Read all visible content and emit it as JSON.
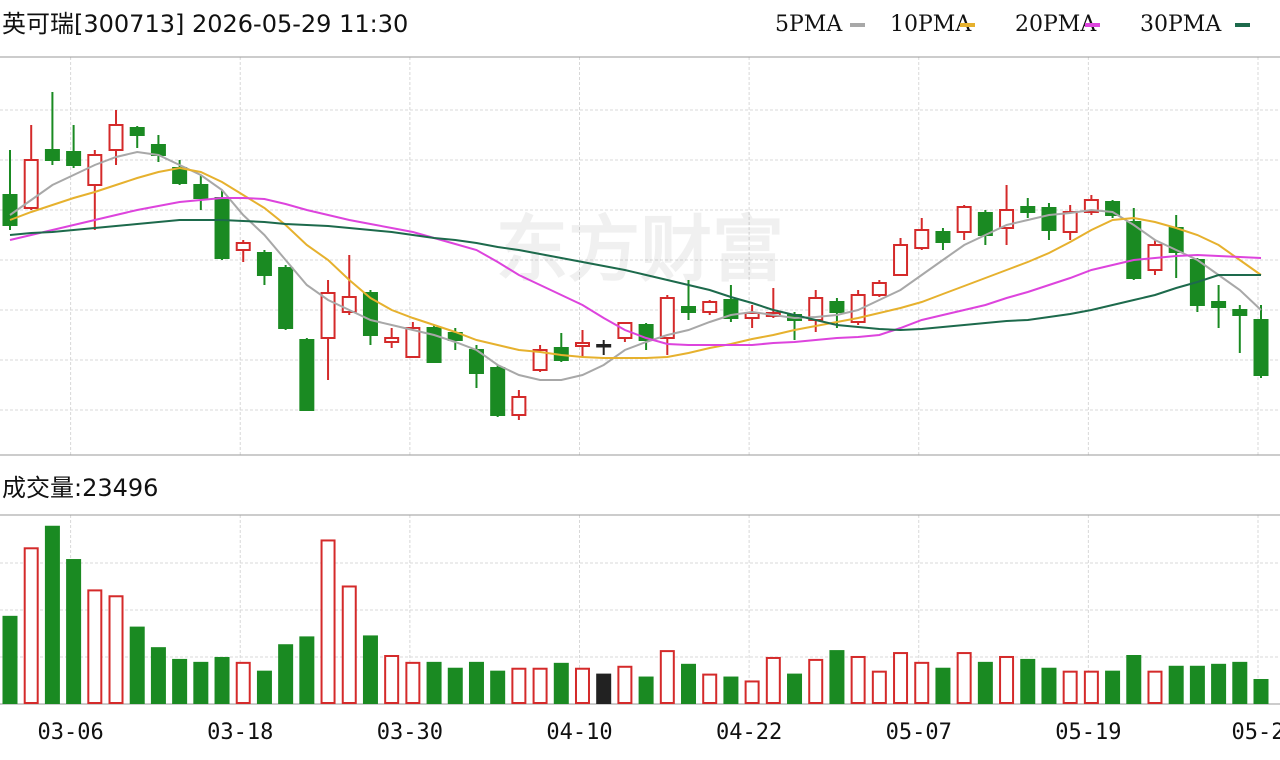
{
  "chart_data": {
    "type": "candlestick",
    "title": "英可瑞[300713] 2026-05-29 11:30",
    "watermark": "东方财富",
    "grid": true,
    "up_color": "#d42a2a",
    "down_color": "#1a8a22",
    "flat_color": "#222222",
    "categories": [
      null,
      null,
      null,
      "03-06",
      null,
      null,
      null,
      null,
      null,
      null,
      null,
      "03-18",
      null,
      null,
      null,
      null,
      null,
      null,
      null,
      "03-30",
      null,
      null,
      null,
      null,
      null,
      null,
      null,
      "04-10",
      null,
      null,
      null,
      null,
      null,
      null,
      null,
      "04-22",
      null,
      null,
      null,
      null,
      null,
      null,
      null,
      "05-07",
      null,
      null,
      null,
      null,
      null,
      null,
      null,
      "05-19",
      null,
      null,
      null,
      null,
      null,
      null,
      null,
      "05-2"
    ],
    "open": [
      27.5,
      26.2,
      32.0,
      31.8,
      28.5,
      32.0,
      34.2,
      32.5,
      30.2,
      28.5,
      27.2,
      22.0,
      21.7,
      20.2,
      13.0,
      13.2,
      15.8,
      17.7,
      12.8,
      11.3,
      14.2,
      13.7,
      12.0,
      10.2,
      5.5,
      10.0,
      12.2,
      12.4,
      12.5,
      13.2,
      14.5,
      13.2,
      16.3,
      15.8,
      17.0,
      15.2,
      15.4,
      15.5,
      15.0,
      16.8,
      14.8,
      17.5,
      19.5,
      22.2,
      23.8,
      23.8,
      25.7,
      24.2,
      26.3,
      26.2,
      23.8,
      25.8,
      26.8,
      24.8,
      20.0,
      24.2,
      21.0,
      16.8,
      16.0,
      15.0
    ],
    "high": [
      32.0,
      34.5,
      37.8,
      34.5,
      32.0,
      36.0,
      34.4,
      33.5,
      31.0,
      29.5,
      28.0,
      23.0,
      22.0,
      20.5,
      13.2,
      19.0,
      21.5,
      18.0,
      14.2,
      14.8,
      14.5,
      14.2,
      12.5,
      10.5,
      8.0,
      12.5,
      13.7,
      14.0,
      13.0,
      14.8,
      14.7,
      17.5,
      19.0,
      17.0,
      18.5,
      16.5,
      18.2,
      15.8,
      18.0,
      17.2,
      18.0,
      19.0,
      23.2,
      25.2,
      24.2,
      26.5,
      26.0,
      28.5,
      27.2,
      26.7,
      26.5,
      27.5,
      27.0,
      26.2,
      23.0,
      25.5,
      21.2,
      18.5,
      16.5,
      16.5
    ],
    "low": [
      24.0,
      26.0,
      30.5,
      30.2,
      24.0,
      30.5,
      32.2,
      30.8,
      28.5,
      26.0,
      21.0,
      20.8,
      18.5,
      14.0,
      6.0,
      9.0,
      15.5,
      12.5,
      12.2,
      11.2,
      10.8,
      12.0,
      8.2,
      5.3,
      5.0,
      9.8,
      10.8,
      11.3,
      11.5,
      12.8,
      12.0,
      11.5,
      15.0,
      15.5,
      14.8,
      14.2,
      15.2,
      13.0,
      13.8,
      14.2,
      14.5,
      17.3,
      19.4,
      22.0,
      22.0,
      23.0,
      22.5,
      22.5,
      25.2,
      23.0,
      23.0,
      25.5,
      25.2,
      19.0,
      19.5,
      19.2,
      15.8,
      14.2,
      11.7,
      9.2
    ],
    "close": [
      24.5,
      31.0,
      31.0,
      30.5,
      31.5,
      34.5,
      33.5,
      31.5,
      28.7,
      27.2,
      21.2,
      22.7,
      19.5,
      14.2,
      6.0,
      17.7,
      17.3,
      13.5,
      13.2,
      14.2,
      10.8,
      13.0,
      9.7,
      5.5,
      7.3,
      12.0,
      11.0,
      12.7,
      12.5,
      14.7,
      13.0,
      17.2,
      15.8,
      16.8,
      15.2,
      15.7,
      15.7,
      15.0,
      17.2,
      15.8,
      17.5,
      18.7,
      22.5,
      24.0,
      22.8,
      26.3,
      23.5,
      26.0,
      25.8,
      24.0,
      25.8,
      27.0,
      25.5,
      19.2,
      22.5,
      21.8,
      16.5,
      16.3,
      15.5,
      9.5
    ],
    "ylim": [
      1.5,
      41
    ],
    "series": [
      {
        "name": "5PMA",
        "color": "#a8a8a8",
        "values": [
          25.5,
          27.0,
          28.5,
          29.5,
          30.5,
          31.3,
          31.8,
          31.5,
          30.5,
          29.5,
          28.0,
          25.5,
          23.5,
          21.0,
          18.5,
          17.0,
          16.0,
          15.0,
          14.5,
          14.0,
          13.5,
          12.8,
          12.0,
          10.5,
          9.5,
          9.0,
          9.0,
          9.5,
          10.5,
          12.0,
          12.8,
          13.5,
          14.0,
          14.8,
          15.5,
          15.8,
          15.5,
          15.2,
          15.3,
          15.5,
          16.0,
          17.0,
          18.0,
          19.5,
          21.0,
          22.5,
          23.5,
          24.5,
          25.0,
          25.5,
          25.7,
          26.0,
          25.8,
          24.5,
          23.0,
          22.0,
          21.0,
          19.5,
          18.0,
          16.0
        ]
      },
      {
        "name": "10PMA",
        "color": "#e6b12e",
        "values": [
          25.0,
          25.8,
          26.5,
          27.2,
          27.8,
          28.5,
          29.2,
          29.8,
          30.2,
          29.8,
          28.8,
          27.5,
          26.2,
          24.5,
          22.5,
          21.0,
          19.0,
          17.2,
          16.0,
          15.2,
          14.5,
          13.8,
          13.0,
          12.5,
          12.0,
          11.8,
          11.5,
          11.3,
          11.2,
          11.2,
          11.2,
          11.3,
          11.7,
          12.2,
          12.6,
          13.1,
          13.5,
          14.0,
          14.4,
          14.8,
          15.2,
          15.7,
          16.2,
          16.8,
          17.6,
          18.4,
          19.2,
          20.0,
          20.8,
          21.7,
          22.8,
          24.0,
          25.0,
          25.2,
          24.8,
          24.2,
          23.5,
          22.5,
          21.0,
          19.5
        ]
      },
      {
        "name": "20PMA",
        "color": "#dd44dd",
        "values": [
          23.0,
          23.5,
          24.0,
          24.5,
          25.0,
          25.5,
          26.0,
          26.4,
          26.8,
          27.0,
          27.2,
          27.2,
          27.1,
          26.6,
          26.0,
          25.5,
          25.0,
          24.6,
          24.2,
          23.8,
          23.2,
          22.6,
          22.0,
          20.8,
          19.5,
          18.5,
          17.5,
          16.5,
          15.2,
          14.0,
          13.2,
          12.6,
          12.5,
          12.5,
          12.5,
          12.5,
          12.7,
          12.8,
          13.0,
          13.2,
          13.3,
          13.5,
          14.2,
          15.0,
          15.5,
          16.0,
          16.5,
          17.2,
          17.8,
          18.5,
          19.2,
          20.0,
          20.5,
          21.0,
          21.2,
          21.4,
          21.5,
          21.4,
          21.3,
          21.2
        ]
      },
      {
        "name": "30PMA",
        "color": "#1d6a4c",
        "values": [
          23.5,
          23.7,
          23.8,
          24.0,
          24.2,
          24.4,
          24.6,
          24.8,
          25.0,
          25.0,
          25.0,
          24.9,
          24.8,
          24.6,
          24.5,
          24.4,
          24.2,
          24.0,
          23.8,
          23.5,
          23.2,
          23.0,
          22.7,
          22.3,
          22.0,
          21.6,
          21.2,
          20.8,
          20.4,
          20.0,
          19.5,
          19.0,
          18.5,
          18.0,
          17.3,
          16.7,
          16.0,
          15.5,
          15.0,
          14.5,
          14.3,
          14.1,
          14.0,
          14.1,
          14.3,
          14.5,
          14.7,
          14.9,
          15.0,
          15.3,
          15.6,
          16.0,
          16.5,
          17.0,
          17.5,
          18.2,
          18.8,
          19.5,
          19.5,
          19.5
        ]
      }
    ],
    "volume": {
      "label": "成交量:",
      "ylim": [
        0,
        192000
      ],
      "values": [
        88000,
        158000,
        180000,
        146000,
        115000,
        109000,
        77000,
        56000,
        44000,
        41000,
        46000,
        41000,
        32000,
        59000,
        67000,
        166000,
        119000,
        68000,
        48000,
        41000,
        41000,
        35000,
        41000,
        32000,
        35000,
        35000,
        40000,
        35000,
        29000,
        37000,
        26000,
        53000,
        39000,
        29000,
        26000,
        22000,
        46000,
        29000,
        44000,
        53000,
        47000,
        32000,
        51000,
        41000,
        35000,
        51000,
        41000,
        47000,
        44000,
        35000,
        32000,
        32000,
        32000,
        48000,
        32000,
        37000,
        37000,
        39000,
        41000,
        23496
      ]
    }
  }
}
